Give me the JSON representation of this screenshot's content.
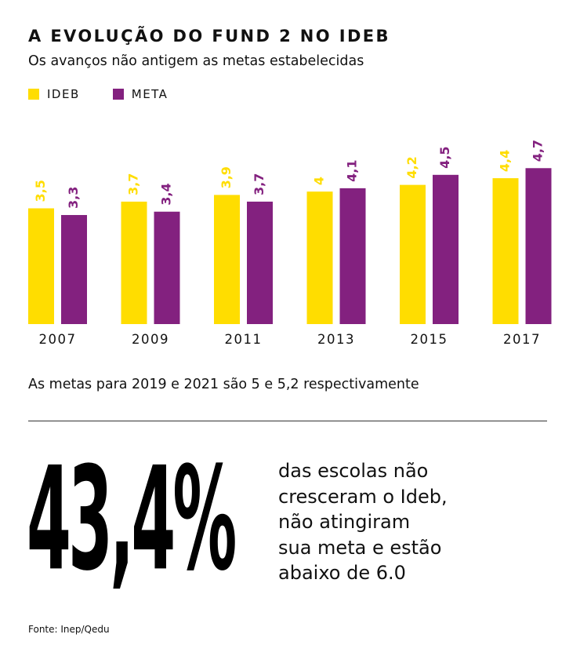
{
  "title": "A EVOLUÇÃO DO FUND 2 NO IDEB",
  "subtitle": "Os avanços não antigem as metas estabelecidas",
  "colors": {
    "ideb": "#FFDD00",
    "meta": "#83217F"
  },
  "chart_data": {
    "type": "bar",
    "title": "A EVOLUÇÃO DO FUND 2 NO IDEB",
    "subtitle": "Os avanços não antigem as metas estabelecidas",
    "categories": [
      "2007",
      "2009",
      "2011",
      "2013",
      "2015",
      "2017"
    ],
    "series": [
      {
        "name": "IDEB",
        "values": [
          3.5,
          3.7,
          3.9,
          4,
          4.2,
          4.4
        ],
        "labels": [
          "3,5",
          "3,7",
          "3,9",
          "4",
          "4,2",
          "4,4"
        ]
      },
      {
        "name": "META",
        "values": [
          3.3,
          3.4,
          3.7,
          4.1,
          4.5,
          4.7
        ],
        "labels": [
          "3,3",
          "3,4",
          "3,7",
          "4,1",
          "4,5",
          "4,7"
        ]
      }
    ],
    "legend": "top-left",
    "grid": false,
    "ylim": [
      0,
      4.7
    ]
  },
  "note": "As metas para 2019 e 2021 são 5 e 5,2 respectivamente",
  "stat": {
    "value": "43,4%",
    "lines": [
      "das escolas não",
      "cresceram o Ideb,",
      "não atingiram",
      "sua meta e estão",
      "abaixo de 6.0"
    ]
  },
  "source": "Fonte: Inep/Qedu"
}
